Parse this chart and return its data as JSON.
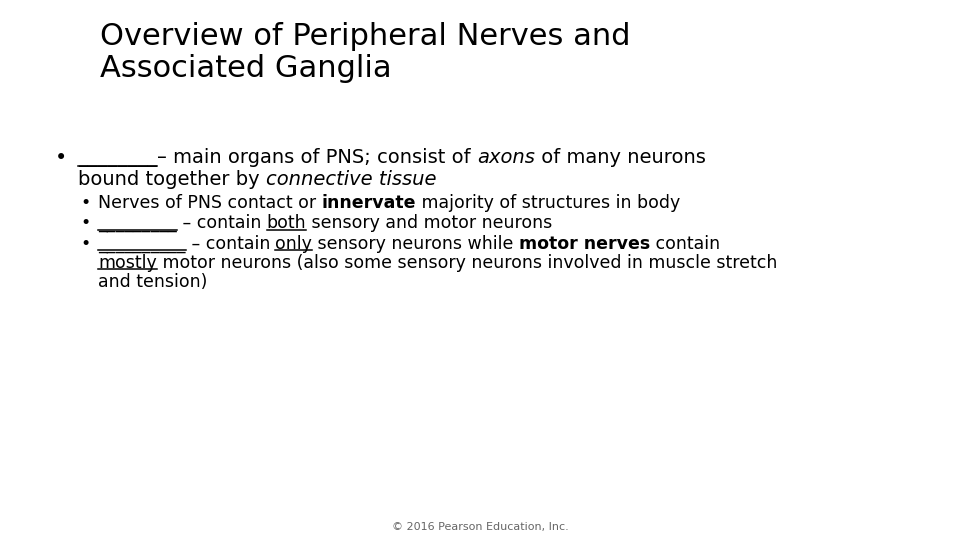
{
  "title_line1": "Overview of Peripheral Nerves and",
  "title_line2": "Associated Ganglia",
  "title_fontsize": 22,
  "body_fontsize": 14,
  "sub_fontsize": 12.5,
  "footer": "© 2016 Pearson Education, Inc.",
  "footer_fontsize": 8,
  "bg_color": "#ffffff",
  "text_color": "#000000",
  "font": "DejaVu Sans"
}
